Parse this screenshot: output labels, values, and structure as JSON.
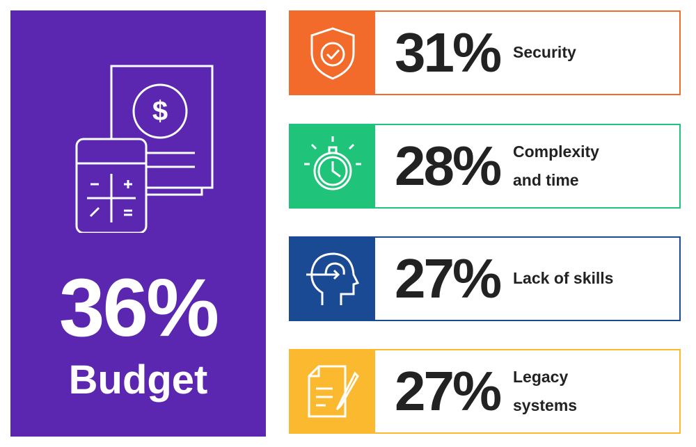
{
  "highlight": {
    "value": "36%",
    "label": "Budget"
  },
  "items": [
    {
      "value": "31%",
      "label": "Security"
    },
    {
      "value": "28%",
      "label": "Complexity and time"
    },
    {
      "value": "27%",
      "label": "Lack of skills"
    },
    {
      "value": "27%",
      "label": "Legacy systems"
    }
  ]
}
